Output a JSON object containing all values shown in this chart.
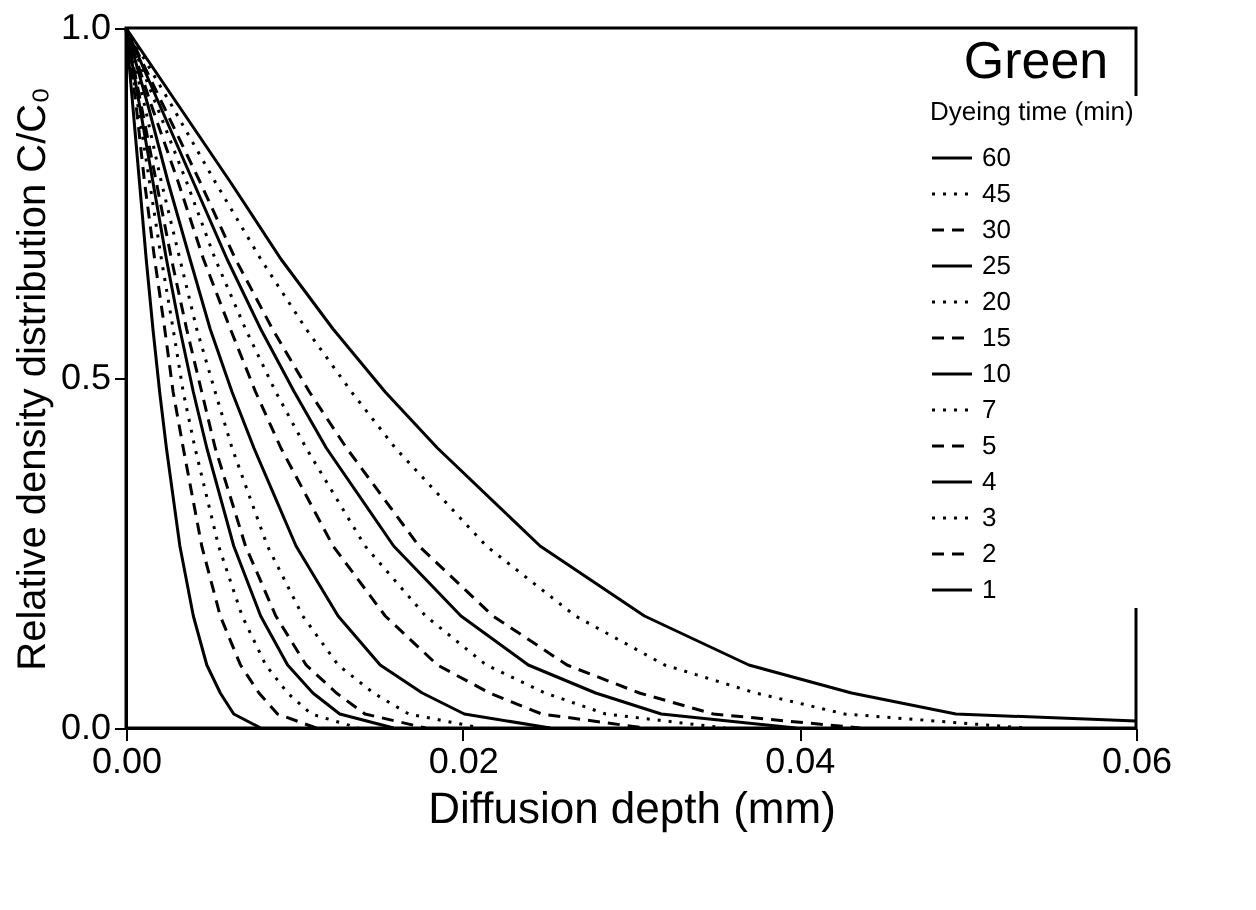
{
  "chart_data": {
    "type": "line",
    "xlabel": "Diffusion depth (mm)",
    "ylabel": "Relative density distribution C/C₀",
    "legend_title": "Dyeing time (min)",
    "annotations": [
      "Green"
    ],
    "legend": "top right",
    "grid": false,
    "marker": "none",
    "xlim": [
      0,
      0.06
    ],
    "xticks": [
      {
        "value": 0,
        "label": "0.00"
      },
      {
        "value": 0.02,
        "label": "0.02"
      },
      {
        "value": 0.04,
        "label": "0.04"
      },
      {
        "value": 0.06,
        "label": "0.06"
      }
    ],
    "ylim": [
      0,
      1
    ],
    "yticks": [
      {
        "value": 0,
        "label": "0.0"
      },
      {
        "value": 0.5,
        "label": "0.5"
      },
      {
        "value": 1,
        "label": "1.0"
      }
    ],
    "series": [
      {
        "name": "60",
        "color": "#000000",
        "line_style": "solid",
        "x": [
          0,
          0.0031,
          0.0062,
          0.0092,
          0.0123,
          0.0154,
          0.0185,
          0.0246,
          0.0308,
          0.037,
          0.0431,
          0.0493,
          0.06
        ],
        "values": [
          1,
          0.89,
          0.78,
          0.67,
          0.57,
          0.48,
          0.4,
          0.26,
          0.16,
          0.09,
          0.05,
          0.02,
          0.01
        ]
      },
      {
        "name": "45",
        "color": "#000000",
        "line_style": "dotted",
        "x": [
          0,
          0.0027,
          0.0053,
          0.008,
          0.0107,
          0.0134,
          0.016,
          0.0214,
          0.0267,
          0.032,
          0.0374,
          0.0427,
          0.0534
        ],
        "values": [
          1,
          0.89,
          0.78,
          0.67,
          0.57,
          0.48,
          0.4,
          0.26,
          0.16,
          0.09,
          0.05,
          0.02,
          0
        ]
      },
      {
        "name": "30",
        "color": "#000000",
        "line_style": "dashed",
        "x": [
          0,
          0.0022,
          0.0044,
          0.0065,
          0.0087,
          0.0109,
          0.0131,
          0.0174,
          0.0218,
          0.0262,
          0.0305,
          0.0349,
          0.0436
        ],
        "values": [
          1,
          0.89,
          0.78,
          0.67,
          0.57,
          0.48,
          0.4,
          0.26,
          0.16,
          0.09,
          0.05,
          0.02,
          0
        ]
      },
      {
        "name": "25",
        "color": "#000000",
        "line_style": "solid",
        "x": [
          0,
          0.002,
          0.004,
          0.006,
          0.008,
          0.01,
          0.0119,
          0.0159,
          0.0199,
          0.0239,
          0.0279,
          0.0318,
          0.0398
        ],
        "values": [
          1,
          0.89,
          0.78,
          0.67,
          0.57,
          0.48,
          0.4,
          0.26,
          0.16,
          0.09,
          0.05,
          0.02,
          0
        ]
      },
      {
        "name": "20",
        "color": "#000000",
        "line_style": "dotted",
        "x": [
          0,
          0.0018,
          0.0036,
          0.0053,
          0.0071,
          0.0089,
          0.0107,
          0.0142,
          0.0178,
          0.0214,
          0.0249,
          0.0285,
          0.0356
        ],
        "values": [
          1,
          0.89,
          0.78,
          0.67,
          0.57,
          0.48,
          0.4,
          0.26,
          0.16,
          0.09,
          0.05,
          0.02,
          0
        ]
      },
      {
        "name": "15",
        "color": "#000000",
        "line_style": "dashed",
        "x": [
          0,
          0.0015,
          0.0031,
          0.0046,
          0.0062,
          0.0077,
          0.0092,
          0.0123,
          0.0154,
          0.0185,
          0.0216,
          0.0247,
          0.0308
        ],
        "values": [
          1,
          0.89,
          0.78,
          0.67,
          0.57,
          0.48,
          0.4,
          0.26,
          0.16,
          0.09,
          0.05,
          0.02,
          0
        ]
      },
      {
        "name": "10",
        "color": "#000000",
        "line_style": "solid",
        "x": [
          0,
          0.0013,
          0.0025,
          0.0038,
          0.005,
          0.0063,
          0.0076,
          0.0101,
          0.0126,
          0.0151,
          0.0176,
          0.0201,
          0.0252
        ],
        "values": [
          1,
          0.89,
          0.78,
          0.67,
          0.57,
          0.48,
          0.4,
          0.26,
          0.16,
          0.09,
          0.05,
          0.02,
          0
        ]
      },
      {
        "name": "7",
        "color": "#000000",
        "line_style": "dotted",
        "x": [
          0,
          0.0011,
          0.0021,
          0.0032,
          0.0042,
          0.0053,
          0.0063,
          0.0084,
          0.0105,
          0.0126,
          0.0147,
          0.0168,
          0.0211
        ],
        "values": [
          1,
          0.89,
          0.78,
          0.67,
          0.57,
          0.48,
          0.4,
          0.26,
          0.16,
          0.09,
          0.05,
          0.02,
          0
        ]
      },
      {
        "name": "5",
        "color": "#000000",
        "line_style": "dashed",
        "x": [
          0,
          0.0009,
          0.0018,
          0.0027,
          0.0036,
          0.0045,
          0.0053,
          0.0071,
          0.0089,
          0.0107,
          0.0125,
          0.0142,
          0.0178
        ],
        "values": [
          1,
          0.89,
          0.78,
          0.67,
          0.57,
          0.48,
          0.4,
          0.26,
          0.16,
          0.09,
          0.05,
          0.02,
          0
        ]
      },
      {
        "name": "4",
        "color": "#000000",
        "line_style": "solid",
        "x": [
          0,
          0.0008,
          0.0016,
          0.0024,
          0.0032,
          0.004,
          0.0048,
          0.0064,
          0.008,
          0.0096,
          0.0111,
          0.0127,
          0.0159
        ],
        "values": [
          1,
          0.89,
          0.78,
          0.67,
          0.57,
          0.48,
          0.4,
          0.26,
          0.16,
          0.09,
          0.05,
          0.02,
          0
        ]
      },
      {
        "name": "3",
        "color": "#000000",
        "line_style": "dotted",
        "x": [
          0,
          0.0007,
          0.0014,
          0.0021,
          0.0028,
          0.0034,
          0.0041,
          0.0055,
          0.0069,
          0.0083,
          0.0096,
          0.011,
          0.0138
        ],
        "values": [
          1,
          0.89,
          0.78,
          0.67,
          0.57,
          0.48,
          0.4,
          0.26,
          0.16,
          0.09,
          0.05,
          0.02,
          0
        ]
      },
      {
        "name": "2",
        "color": "#000000",
        "line_style": "dashed",
        "x": [
          0,
          0.0006,
          0.0011,
          0.0017,
          0.0023,
          0.0028,
          0.0034,
          0.0045,
          0.0056,
          0.0068,
          0.0079,
          0.009,
          0.0113
        ],
        "values": [
          1,
          0.89,
          0.78,
          0.67,
          0.57,
          0.48,
          0.4,
          0.26,
          0.16,
          0.09,
          0.05,
          0.02,
          0
        ]
      },
      {
        "name": "1",
        "color": "#000000",
        "line_style": "solid",
        "x": [
          0,
          0.0004,
          0.0008,
          0.0012,
          0.0016,
          0.002,
          0.0024,
          0.0032,
          0.004,
          0.0048,
          0.0056,
          0.0064,
          0.008
        ],
        "values": [
          1,
          0.89,
          0.78,
          0.67,
          0.57,
          0.48,
          0.4,
          0.26,
          0.16,
          0.09,
          0.05,
          0.02,
          0
        ]
      }
    ]
  }
}
